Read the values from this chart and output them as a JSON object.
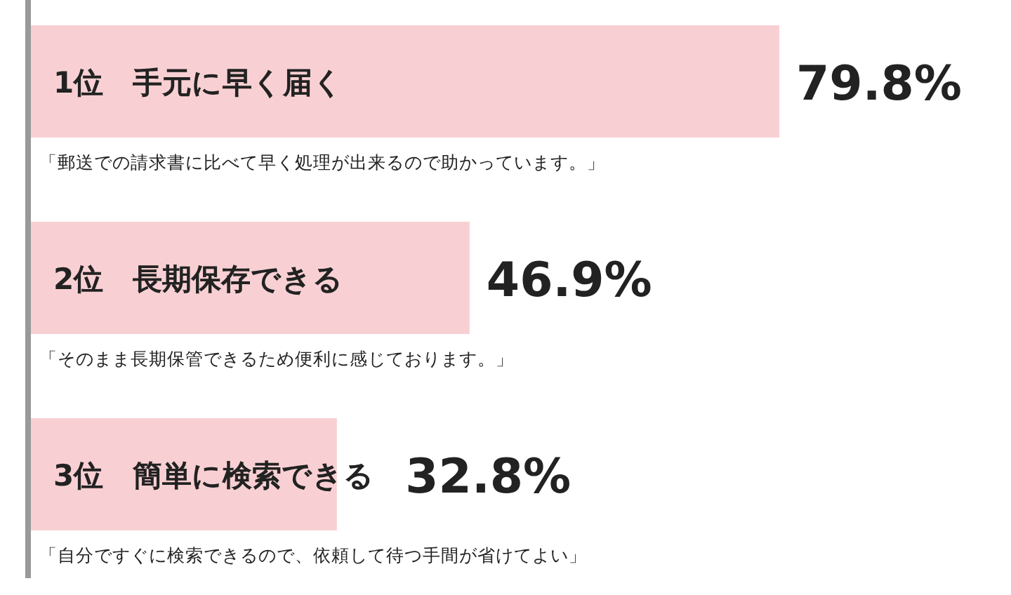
{
  "chart_data": {
    "type": "bar",
    "orientation": "horizontal",
    "color": "#f8d0d3",
    "categories": [
      "1位　手元に早く届く",
      "2位　長期保存できる",
      "3位　簡単に検索できる"
    ],
    "values": [
      79.8,
      46.9,
      32.8
    ],
    "value_labels": [
      "79.8%",
      "46.9%",
      "32.8%"
    ],
    "annotations": [
      "「郵送での請求書に比べて早く処理が出来るので助かっています。」",
      "「そのまま長期保管できるため便利に感じております。」",
      "「自分ですぐに検索できるので、依頼して待つ手間が省けてよい」"
    ]
  }
}
